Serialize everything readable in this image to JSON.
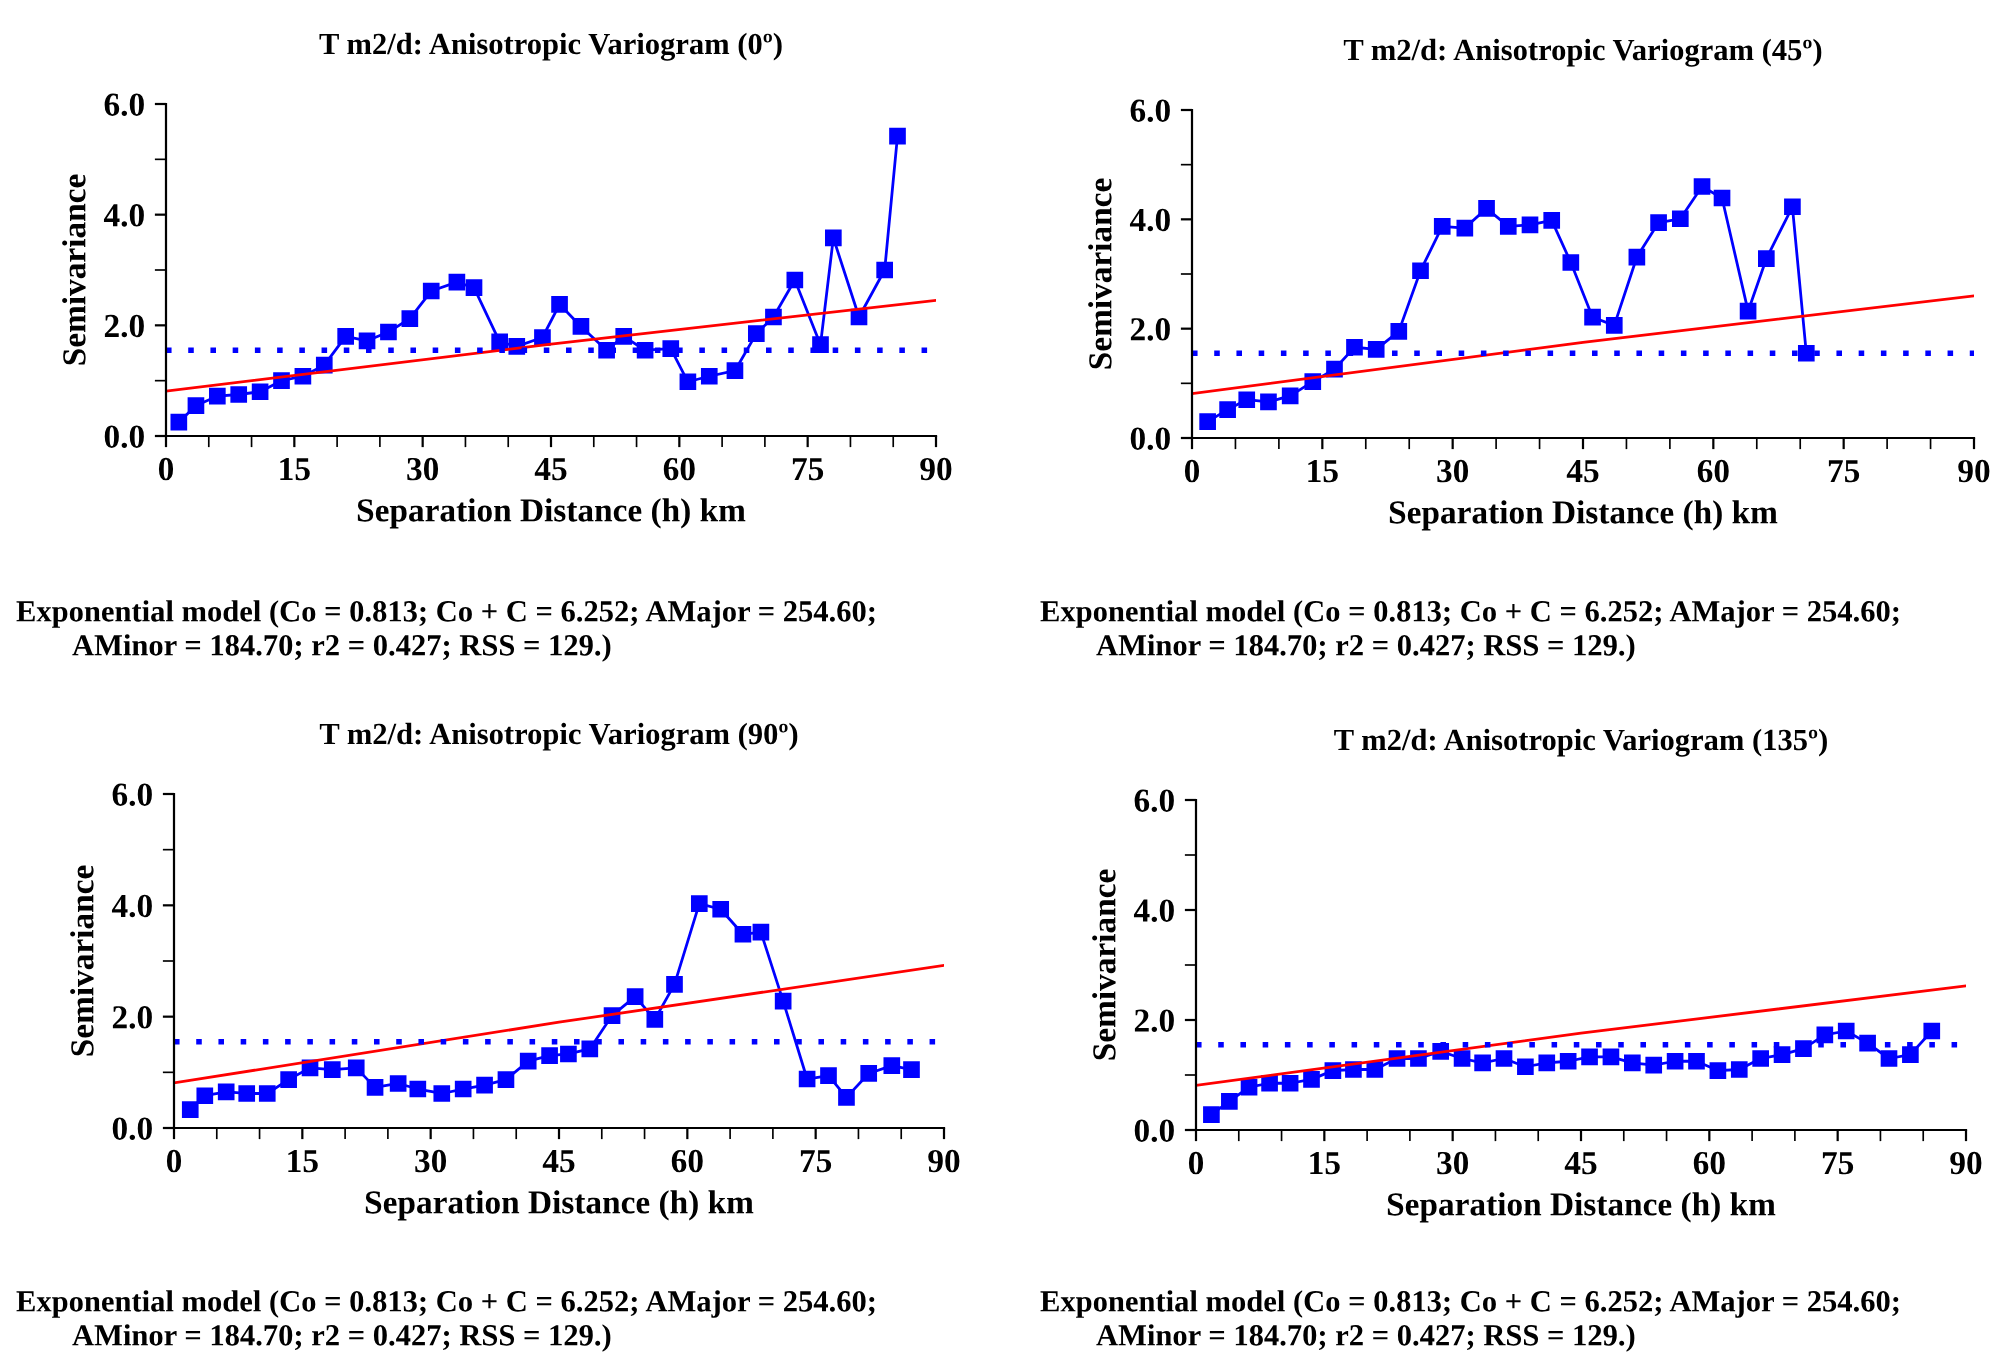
{
  "chart_data": [
    {
      "type": "line",
      "title": "T m2/d: Anisotropic Variogram (0º)",
      "xlabel": "Separation Distance (h) km",
      "ylabel": "Semivariance",
      "xlim": [
        0,
        90
      ],
      "xticks": [
        0,
        15,
        30,
        45,
        60,
        75,
        90
      ],
      "ylim": [
        0,
        6
      ],
      "yticks": [
        {
          "value": 0,
          "label": "0.0"
        },
        {
          "value": 2,
          "label": "2.0"
        },
        {
          "value": 4,
          "label": "4.0"
        },
        {
          "value": 6,
          "label": "6.0"
        }
      ],
      "grid": false,
      "legend": false,
      "series": [
        {
          "color": "#0000ff",
          "marker": "square",
          "x": [
            1.5,
            3.5,
            6,
            8.5,
            11,
            13.5,
            16,
            18.5,
            21,
            23.5,
            26,
            28.5,
            31,
            34,
            36,
            39,
            41,
            44,
            46,
            48.5,
            51.5,
            53.5,
            56,
            59,
            61,
            63.5,
            66.5,
            69,
            71,
            73.5,
            76.5,
            78,
            81,
            84,
            85.5
          ],
          "values": [
            0.25,
            0.55,
            0.72,
            0.75,
            0.8,
            1.0,
            1.08,
            1.28,
            1.8,
            1.72,
            1.88,
            2.12,
            2.62,
            2.78,
            2.68,
            1.7,
            1.62,
            1.78,
            2.38,
            1.98,
            1.55,
            1.8,
            1.55,
            1.58,
            0.98,
            1.08,
            1.18,
            1.85,
            2.15,
            2.82,
            1.65,
            3.58,
            2.15,
            3.0,
            5.42
          ]
        },
        {
          "type": "line",
          "color": "#ff0000",
          "marker": "none",
          "x": [
            0,
            45,
            90
          ],
          "values": [
            0.81,
            1.66,
            2.45
          ]
        }
      ],
      "ref_lines": [
        {
          "axis": "y",
          "value": 1.55,
          "color": "#0000ff",
          "line_style": "dotted"
        }
      ],
      "annotations": [
        "Exponential model (Co = 0.813; Co + C = 6.252; AMajor = 254.60;",
        "AMinor = 184.70; r2 = 0.427; RSS = 129.)"
      ]
    },
    {
      "type": "line",
      "title": "T m2/d: Anisotropic Variogram (45º)",
      "xlabel": "Separation Distance (h) km",
      "ylabel": "Semivariance",
      "xlim": [
        0,
        90
      ],
      "xticks": [
        0,
        15,
        30,
        45,
        60,
        75,
        90
      ],
      "ylim": [
        0,
        6
      ],
      "yticks": [
        {
          "value": 0,
          "label": "0.0"
        },
        {
          "value": 2,
          "label": "2.0"
        },
        {
          "value": 4,
          "label": "4.0"
        },
        {
          "value": 6,
          "label": "6.0"
        }
      ],
      "grid": false,
      "legend": false,
      "series": [
        {
          "color": "#0000ff",
          "marker": "square",
          "x": [
            1.8,
            4.1,
            6.3,
            8.8,
            11.3,
            13.9,
            16.4,
            18.7,
            21.2,
            23.8,
            26.3,
            28.8,
            31.4,
            33.9,
            36.4,
            38.9,
            41.4,
            43.6,
            46.1,
            48.6,
            51.2,
            53.7,
            56.2,
            58.7,
            61,
            64,
            66.1,
            69.1,
            70.7
          ],
          "values": [
            0.3,
            0.52,
            0.7,
            0.66,
            0.77,
            1.03,
            1.26,
            1.66,
            1.62,
            1.95,
            3.06,
            3.87,
            3.84,
            4.2,
            3.87,
            3.9,
            3.98,
            3.21,
            2.21,
            2.06,
            3.31,
            3.94,
            4.01,
            4.6,
            4.39,
            2.32,
            3.28,
            4.23,
            1.55
          ]
        },
        {
          "type": "line",
          "color": "#ff0000",
          "marker": "none",
          "x": [
            0,
            45,
            90
          ],
          "values": [
            0.81,
            1.75,
            2.6
          ]
        }
      ],
      "ref_lines": [
        {
          "axis": "y",
          "value": 1.55,
          "color": "#0000ff",
          "line_style": "dotted"
        }
      ],
      "annotations": [
        "Exponential model (Co = 0.813; Co + C = 6.252; AMajor = 254.60;",
        "AMinor = 184.70; r2 = 0.427; RSS = 129.)"
      ]
    },
    {
      "type": "line",
      "title": "T m2/d: Anisotropic Variogram (90º)",
      "xlabel": "Separation Distance (h) km",
      "ylabel": "Semivariance",
      "xlim": [
        0,
        90
      ],
      "xticks": [
        0,
        15,
        30,
        45,
        60,
        75,
        90
      ],
      "ylim": [
        0,
        6
      ],
      "yticks": [
        {
          "value": 0,
          "label": "0.0"
        },
        {
          "value": 2,
          "label": "2.0"
        },
        {
          "value": 4,
          "label": "4.0"
        },
        {
          "value": 6,
          "label": "6.0"
        }
      ],
      "grid": false,
      "legend": false,
      "series": [
        {
          "color": "#0000ff",
          "marker": "square",
          "x": [
            1.9,
            3.6,
            6.1,
            8.5,
            10.9,
            13.4,
            15.9,
            18.5,
            21.3,
            23.5,
            26.2,
            28.5,
            31.3,
            33.8,
            36.3,
            38.8,
            41.4,
            43.9,
            46.1,
            48.6,
            51.2,
            53.9,
            56.2,
            58.5,
            61.4,
            63.9,
            66.5,
            68.6,
            71.2,
            74,
            76.5,
            78.6,
            81.2,
            83.9,
            86.2
          ],
          "values": [
            0.33,
            0.58,
            0.65,
            0.62,
            0.62,
            0.87,
            1.08,
            1.05,
            1.08,
            0.73,
            0.8,
            0.7,
            0.62,
            0.7,
            0.77,
            0.87,
            1.2,
            1.3,
            1.33,
            1.42,
            2.02,
            2.36,
            1.95,
            2.58,
            4.03,
            3.93,
            3.48,
            3.52,
            2.28,
            0.88,
            0.94,
            0.55,
            0.98,
            1.12,
            1.05
          ]
        },
        {
          "type": "line",
          "color": "#ff0000",
          "marker": "none",
          "x": [
            0,
            45,
            90
          ],
          "values": [
            0.81,
            1.9,
            2.92
          ]
        }
      ],
      "ref_lines": [
        {
          "axis": "y",
          "value": 1.55,
          "color": "#0000ff",
          "line_style": "dotted"
        }
      ],
      "annotations": [
        "Exponential model (Co = 0.813; Co + C = 6.252; AMajor = 254.60;",
        "AMinor = 184.70; r2 = 0.427; RSS = 129.)"
      ]
    },
    {
      "type": "line",
      "title": "T m2/d: Anisotropic Variogram (135º)",
      "xlabel": "Separation Distance (h) km",
      "ylabel": "Semivariance",
      "xlim": [
        0,
        90
      ],
      "xticks": [
        0,
        15,
        30,
        45,
        60,
        75,
        90
      ],
      "ylim": [
        0,
        6
      ],
      "yticks": [
        {
          "value": 0,
          "label": "0.0"
        },
        {
          "value": 2,
          "label": "2.0"
        },
        {
          "value": 4,
          "label": "4.0"
        },
        {
          "value": 6,
          "label": "6.0"
        }
      ],
      "grid": false,
      "legend": false,
      "series": [
        {
          "color": "#0000ff",
          "marker": "square",
          "x": [
            1.8,
            3.9,
            6.2,
            8.6,
            11,
            13.5,
            16,
            18.4,
            20.9,
            23.5,
            26,
            28.6,
            31.1,
            33.5,
            36,
            38.5,
            41,
            43.5,
            46,
            48.5,
            51,
            53.5,
            56,
            58.5,
            61,
            63.5,
            66,
            68.5,
            71,
            73.5,
            76,
            78.5,
            81,
            83.5,
            86
          ],
          "values": [
            0.28,
            0.52,
            0.78,
            0.85,
            0.85,
            0.92,
            1.08,
            1.1,
            1.1,
            1.3,
            1.3,
            1.43,
            1.3,
            1.22,
            1.3,
            1.15,
            1.22,
            1.25,
            1.33,
            1.33,
            1.22,
            1.18,
            1.25,
            1.25,
            1.08,
            1.1,
            1.3,
            1.37,
            1.48,
            1.73,
            1.8,
            1.58,
            1.3,
            1.37,
            1.8
          ]
        },
        {
          "type": "line",
          "color": "#ff0000",
          "marker": "none",
          "x": [
            0,
            45,
            90
          ],
          "values": [
            0.81,
            1.76,
            2.62
          ]
        }
      ],
      "ref_lines": [
        {
          "axis": "y",
          "value": 1.55,
          "color": "#0000ff",
          "line_style": "dotted"
        }
      ],
      "annotations": [
        "Exponential model (Co = 0.813; Co + C = 6.252; AMajor = 254.60;",
        "AMinor = 184.70; r2 = 0.427; RSS = 129.)"
      ]
    }
  ]
}
